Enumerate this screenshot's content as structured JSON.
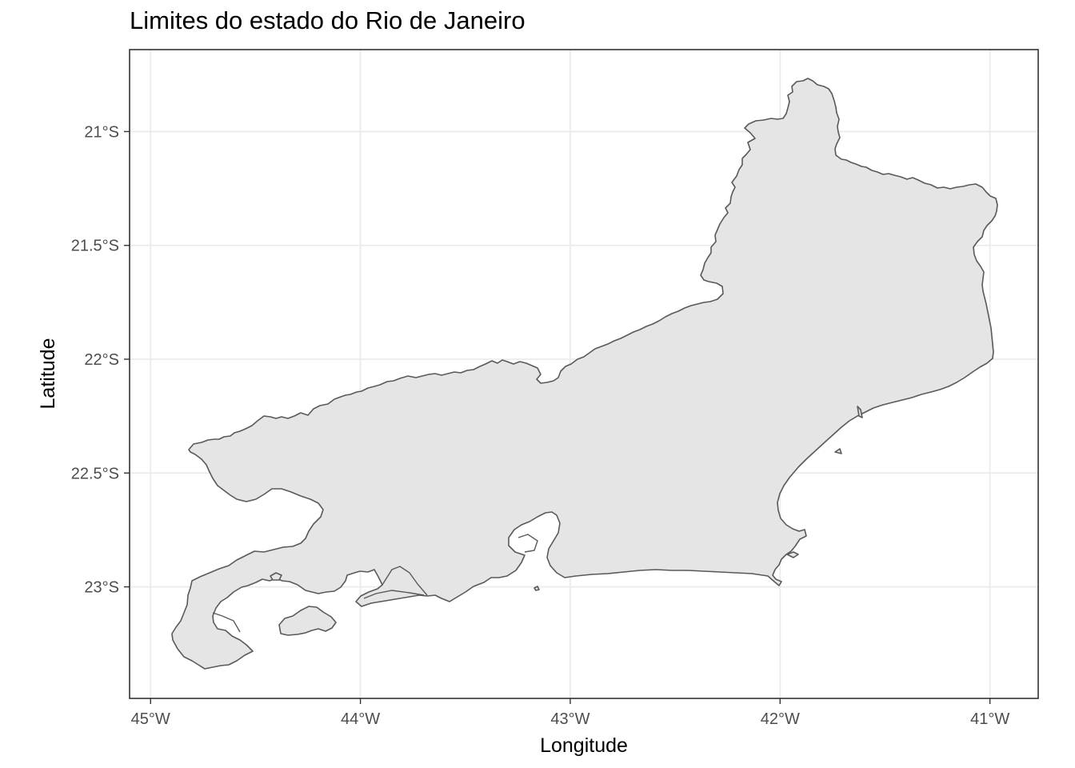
{
  "title": "Limites do estado do Rio de Janeiro",
  "map": {
    "projection": "geographic (longitude/latitude)",
    "region": "Rio de Janeiro state",
    "fill_color": "#e5e5e5",
    "outline_color": "#595959",
    "grid": true,
    "grid_color": "#ebebeb",
    "panel_border_color": "#333333",
    "x_axis": {
      "title": "Longitude",
      "range": [
        -45.1,
        -40.77
      ],
      "ticks": [
        {
          "value": -45,
          "label": "45°W"
        },
        {
          "value": -44,
          "label": "44°W"
        },
        {
          "value": -43,
          "label": "43°W"
        },
        {
          "value": -42,
          "label": "42°W"
        },
        {
          "value": -41,
          "label": "41°W"
        }
      ]
    },
    "y_axis": {
      "title": "Latitude",
      "range": [
        -23.49,
        -20.64
      ],
      "ticks": [
        {
          "value": -21.0,
          "label": "21°S"
        },
        {
          "value": -21.5,
          "label": "21.5°S"
        },
        {
          "value": -22.0,
          "label": "22°S"
        },
        {
          "value": -22.5,
          "label": "22.5°S"
        },
        {
          "value": -23.0,
          "label": "23°S"
        }
      ]
    }
  }
}
